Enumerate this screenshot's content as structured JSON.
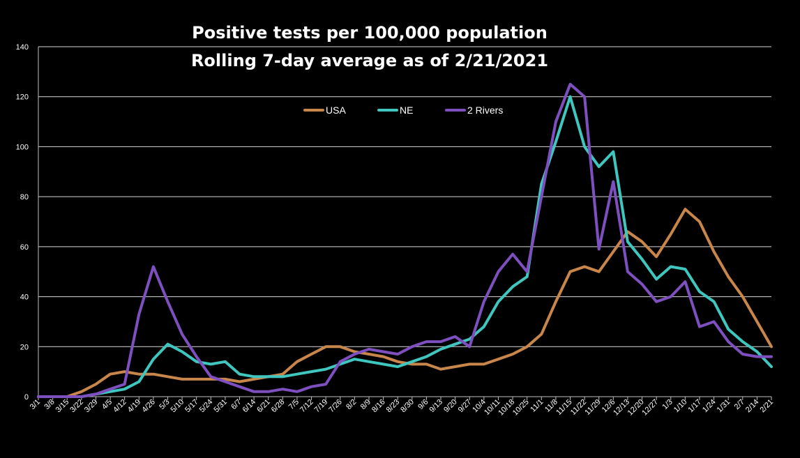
{
  "chart_data": {
    "type": "line",
    "title": "Positive tests per 100,000 population",
    "subtitle": "Rolling 7-day average as of 2/21/2021",
    "xlabel": "",
    "ylabel": "",
    "ylim": [
      0,
      140
    ],
    "yticks": [
      "0",
      "20",
      "40",
      "60",
      "80",
      "100",
      "120",
      "140"
    ],
    "grid": true,
    "legend_position": "top-center",
    "categories": [
      "3/1",
      "3/8",
      "3/15",
      "3/22",
      "3/29",
      "4/5",
      "4/12",
      "4/19",
      "4/26",
      "5/3",
      "5/10",
      "5/17",
      "5/24",
      "5/31",
      "6/7",
      "6/14",
      "6/21",
      "6/28",
      "7/5",
      "7/12",
      "7/19",
      "7/26",
      "8/2",
      "8/9",
      "8/16",
      "8/23",
      "8/30",
      "9/6",
      "9/13",
      "9/20",
      "9/27",
      "10/4",
      "10/11",
      "10/18",
      "10/25",
      "11/1",
      "11/8",
      "11/15",
      "11/22",
      "11/29",
      "12/6",
      "12/13",
      "12/20",
      "12/27",
      "1/3",
      "1/10",
      "1/17",
      "1/24",
      "1/31",
      "2/7",
      "2/14",
      "2/21"
    ],
    "series": [
      {
        "name": "USA",
        "color": "#c8864a",
        "values": [
          0,
          0,
          0,
          2,
          5,
          9,
          10,
          9,
          9,
          8,
          7,
          7,
          7,
          7,
          6,
          7,
          8,
          9,
          14,
          17,
          20,
          20,
          18,
          17,
          16,
          14,
          13,
          13,
          11,
          12,
          13,
          13,
          15,
          17,
          20,
          25,
          38,
          50,
          52,
          50,
          58,
          66,
          62,
          56,
          65,
          75,
          70,
          58,
          48,
          40,
          30,
          20
        ]
      },
      {
        "name": "NE",
        "color": "#3fc7bf",
        "values": [
          0,
          0,
          0,
          0,
          1,
          2,
          3,
          6,
          15,
          21,
          18,
          14,
          13,
          14,
          9,
          8,
          8,
          8,
          9,
          10,
          11,
          13,
          15,
          14,
          13,
          12,
          14,
          16,
          19,
          21,
          23,
          28,
          38,
          44,
          48,
          85,
          102,
          120,
          100,
          92,
          98,
          62,
          55,
          47,
          52,
          51,
          42,
          38,
          27,
          22,
          18,
          12
        ]
      },
      {
        "name": "2 Rivers",
        "color": "#7e4fbf",
        "values": [
          0,
          0,
          0,
          0,
          1,
          3,
          5,
          33,
          52,
          38,
          25,
          16,
          8,
          6,
          4,
          2,
          2,
          3,
          2,
          4,
          5,
          14,
          17,
          19,
          18,
          17,
          20,
          22,
          22,
          24,
          20,
          38,
          50,
          57,
          50,
          80,
          110,
          125,
          120,
          59,
          86,
          50,
          45,
          38,
          40,
          46,
          28,
          30,
          22,
          17,
          16,
          16
        ]
      }
    ]
  }
}
